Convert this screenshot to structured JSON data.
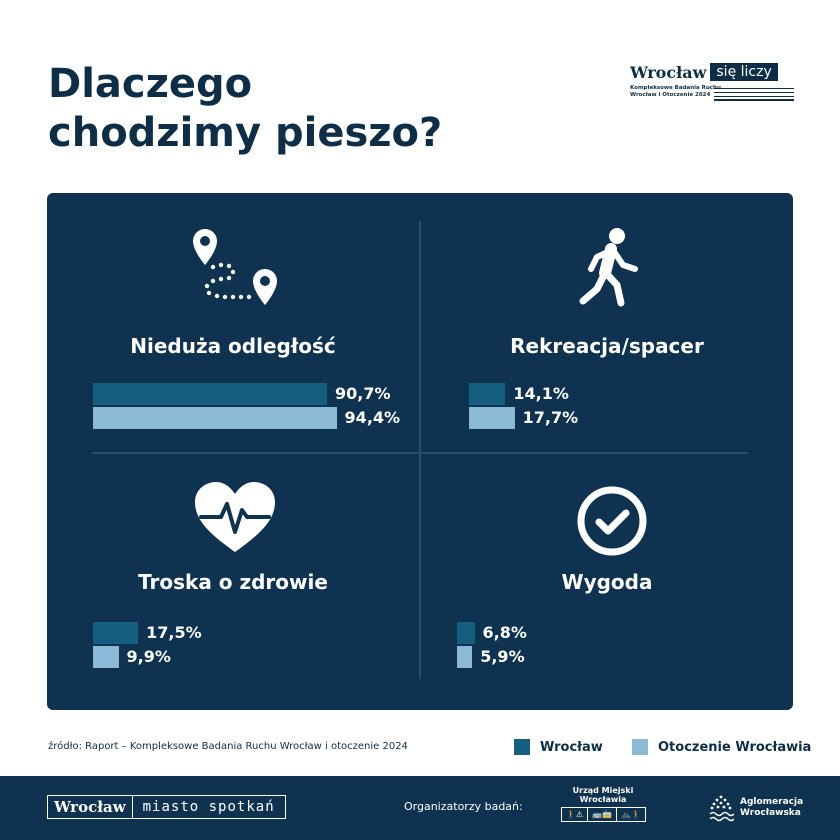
{
  "title": {
    "line1": "Dlaczego",
    "line2": "chodzimy pieszo?"
  },
  "brand": {
    "name": "Wrocław",
    "tag": "się liczy",
    "sub1": "Kompleksowe Badania Ruchu",
    "sub2": "Wrocław i Otoczenie 2024"
  },
  "chart_data": {
    "type": "bar",
    "orientation": "horizontal",
    "title": "Dlaczego chodzimy pieszo?",
    "unit": "%",
    "series": [
      {
        "name": "Wrocław",
        "color": "#155e7f"
      },
      {
        "name": "Otoczenie Wrocławia",
        "color": "#8cb9d6"
      }
    ],
    "groups": [
      {
        "category": "Nieduża odległość",
        "icon": "map-route-icon",
        "values": [
          90.7,
          94.4
        ],
        "labels": [
          "90,7%",
          "94,4%"
        ]
      },
      {
        "category": "Rekreacja/spacer",
        "icon": "walking-person-icon",
        "values": [
          14.1,
          17.7
        ],
        "labels": [
          "14,1%",
          "17,7%"
        ]
      },
      {
        "category": "Troska o zdrowie",
        "icon": "heart-pulse-icon",
        "values": [
          17.5,
          9.9
        ],
        "labels": [
          "17,5%",
          "9,9%"
        ]
      },
      {
        "category": "Wygoda",
        "icon": "check-circle-icon",
        "values": [
          6.8,
          5.9
        ],
        "labels": [
          "6,8%",
          "5,9%"
        ]
      }
    ],
    "legend_position": "bottom-right",
    "colors": {
      "panel": "#0e3250",
      "divider": "#24506b"
    }
  },
  "source": "źródło: Raport – Kompleksowe Badania Ruchu Wrocław i otoczenie 2024",
  "legend": [
    {
      "label": "Wrocław",
      "color": "#155e7f"
    },
    {
      "label": "Otoczenie Wrocławia",
      "color": "#8cb9d6"
    }
  ],
  "footer": {
    "logo_a": "Wrocław",
    "logo_b": "miasto spotkań",
    "organizers_label": "Organizatorzy badań:",
    "um_title": "Urząd Miejski Wrocławia",
    "um_icons": [
      "walking-icon",
      "bus-icon",
      "bike-icon"
    ],
    "aw_line1": "Aglomeracja",
    "aw_line2": "Wrocławska"
  }
}
